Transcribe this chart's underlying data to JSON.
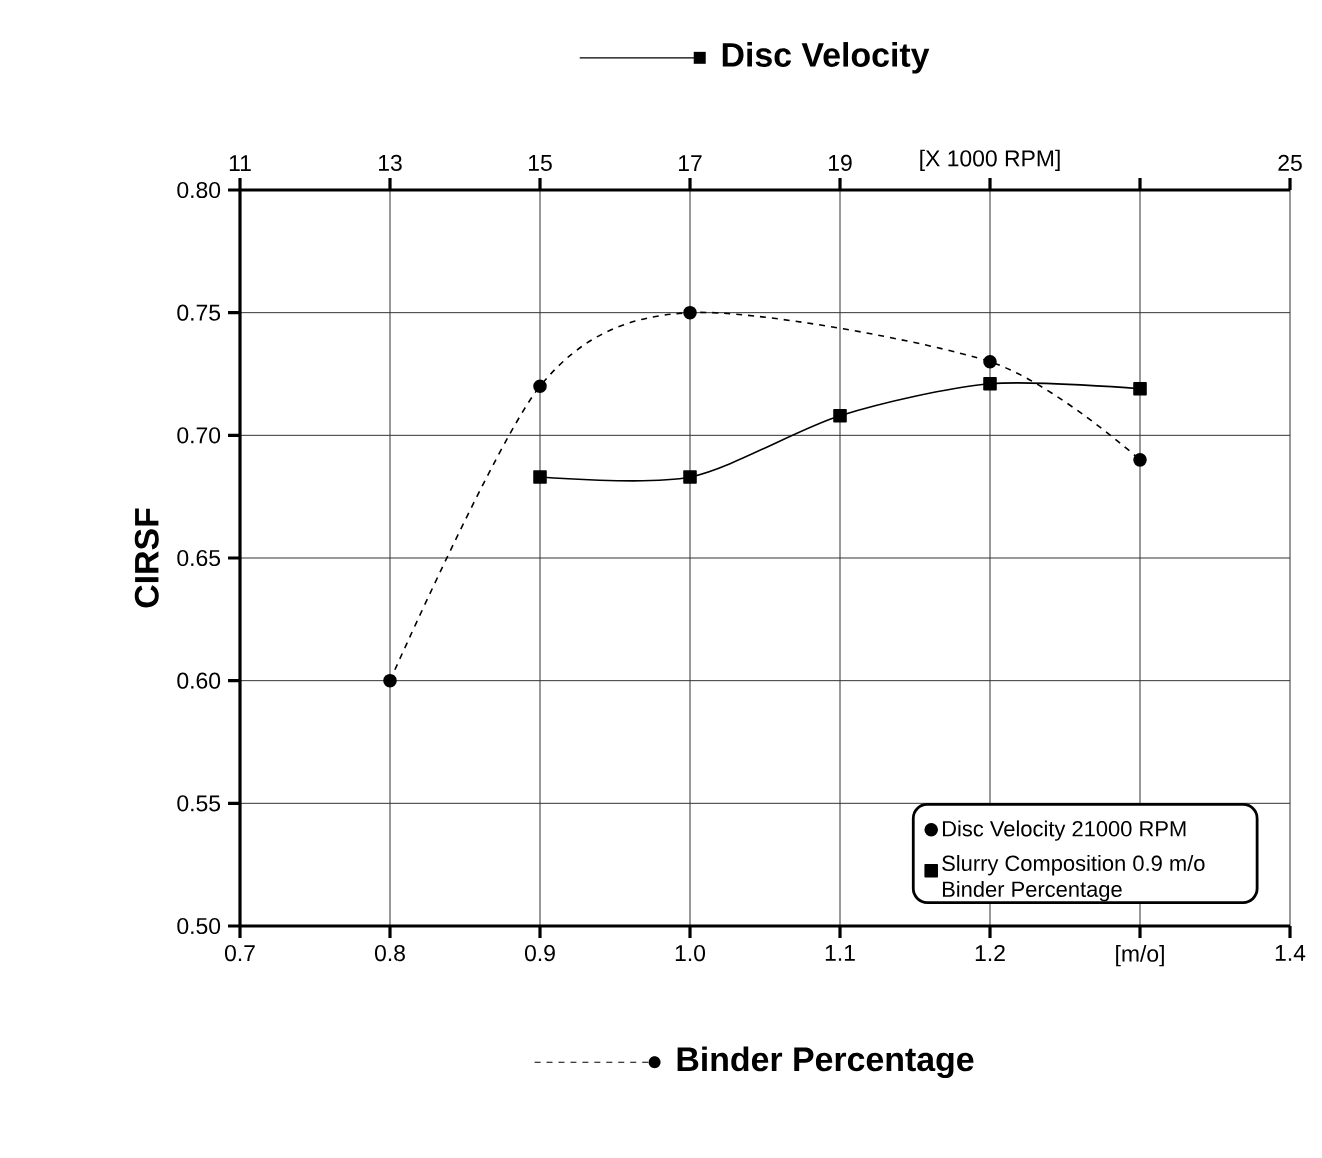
{
  "chart_data": {
    "type": "line",
    "ylabel": "CIRSF",
    "xlabel": "Binder Percentage",
    "x2label": "Disc Velocity",
    "xlim": [
      0.7,
      1.4
    ],
    "xticks": [
      {
        "value": 0.7,
        "label": "0.7"
      },
      {
        "value": 0.8,
        "label": "0.8"
      },
      {
        "value": 0.9,
        "label": "0.9"
      },
      {
        "value": 1.0,
        "label": "1.0"
      },
      {
        "value": 1.1,
        "label": "1.1"
      },
      {
        "value": 1.2,
        "label": "1.2"
      },
      {
        "value": 1.3,
        "label": "[m/o]"
      },
      {
        "value": 1.4,
        "label": "1.4"
      }
    ],
    "x2lim": [
      11,
      25
    ],
    "x2ticks": [
      11,
      13,
      15,
      17,
      19,
      {
        "value": 21,
        "label": "[X 1000 RPM]"
      },
      {
        "value": 23,
        "label": null
      },
      25
    ],
    "ylim": [
      0.5,
      0.8
    ],
    "yticks": [
      {
        "value": 0.5,
        "label": "0.50"
      },
      {
        "value": 0.55,
        "label": "0.55"
      },
      {
        "value": 0.6,
        "label": "0.60"
      },
      {
        "value": 0.65,
        "label": "0.65"
      },
      {
        "value": 0.7,
        "label": "0.70"
      },
      {
        "value": 0.75,
        "label": "0.75"
      },
      {
        "value": 0.8,
        "label": "0.80"
      }
    ],
    "grid": true,
    "legend": "bottom right",
    "series": [
      {
        "name": "Disc Velocity 21000 RPM",
        "color": "#000000",
        "marker": "circle",
        "line_style": "dashed",
        "x": [
          0.8,
          0.9,
          1.0,
          1.2,
          1.3
        ],
        "values": [
          0.6,
          0.72,
          0.75,
          0.73,
          0.69
        ]
      },
      {
        "name": "Slurry Composition 0.9 m/o Binder Percentage",
        "color": "#000000",
        "marker": "square",
        "line_style": "solid",
        "axis": "x2",
        "x": [
          15,
          17,
          19,
          21,
          23
        ],
        "values": [
          0.683,
          0.683,
          0.708,
          0.721,
          0.719
        ]
      }
    ]
  }
}
